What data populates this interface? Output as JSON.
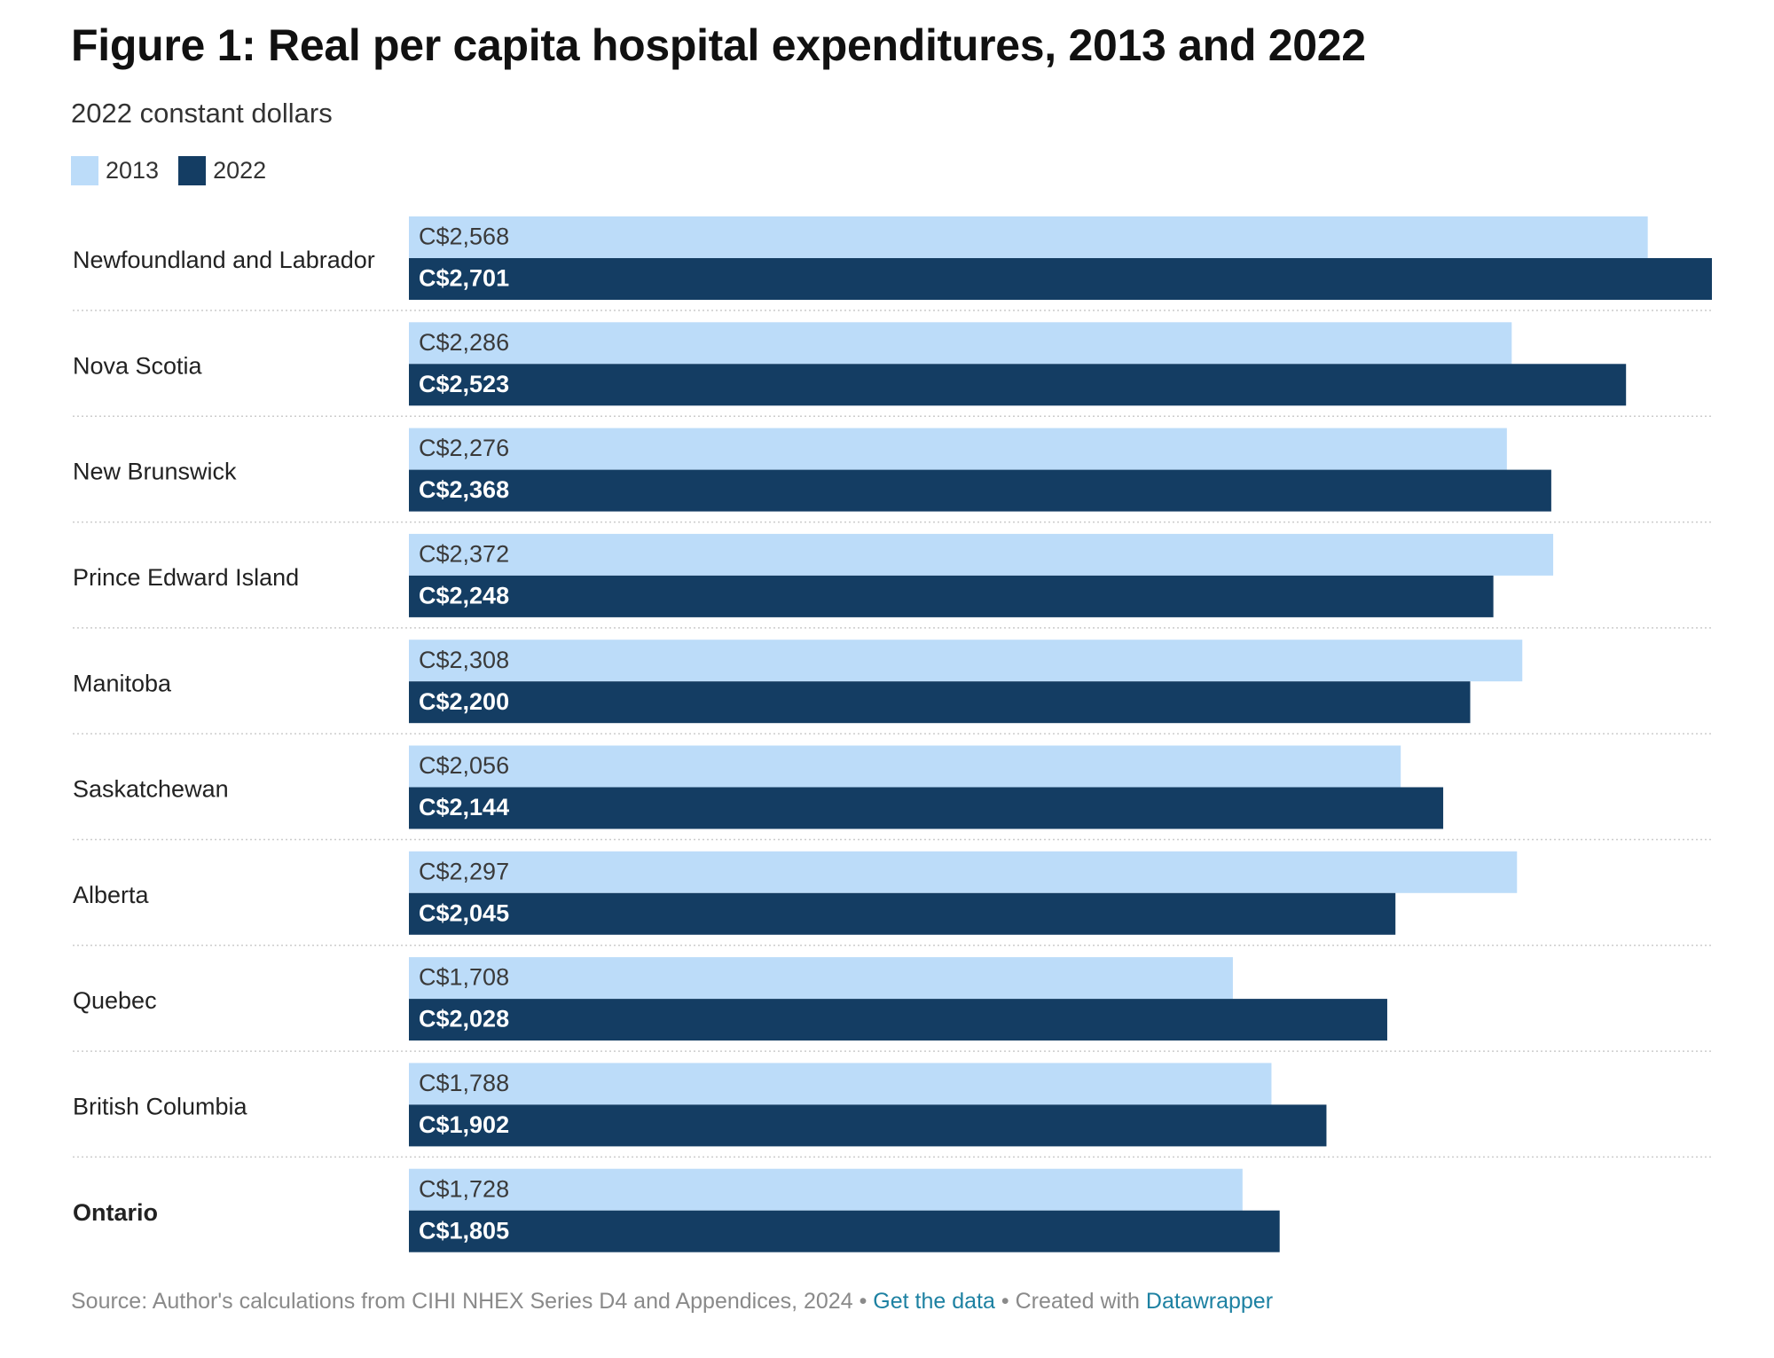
{
  "title": "Figure 1: Real per capita hospital expenditures, 2013 and 2022",
  "subtitle": "2022 constant dollars",
  "colors": {
    "2013": "#bcdcf9",
    "2022": "#143d63",
    "label_on_light": "#3a3a3a",
    "label_on_dark": "#ffffff",
    "separator": "#cccccc",
    "link": "#1d81a2"
  },
  "legend": [
    {
      "label": "2013",
      "color": "#bcdcf9"
    },
    {
      "label": "2022",
      "color": "#143d63"
    }
  ],
  "chart_data": {
    "type": "bar",
    "orientation": "horizontal",
    "grouped": true,
    "title": "Figure 1: Real per capita hospital expenditures, 2013 and 2022",
    "subtitle": "2022 constant dollars",
    "xlim": [
      0,
      2701
    ],
    "grid": false,
    "legend_position": "top-left",
    "categories": [
      "Newfoundland and Labrador",
      "Nova Scotia",
      "New Brunswick",
      "Prince Edward Island",
      "Manitoba",
      "Saskatchewan",
      "Alberta",
      "Quebec",
      "British Columbia",
      "Ontario"
    ],
    "bold_categories": [
      "Ontario"
    ],
    "series": [
      {
        "name": "2013",
        "color": "#bcdcf9",
        "values": [
          2568,
          2286,
          2276,
          2372,
          2308,
          2056,
          2297,
          1708,
          1788,
          1728
        ],
        "labels": [
          "C$2,568",
          "C$2,286",
          "C$2,276",
          "C$2,372",
          "C$2,308",
          "C$2,056",
          "C$2,297",
          "C$1,708",
          "C$1,788",
          "C$1,728"
        ]
      },
      {
        "name": "2022",
        "color": "#143d63",
        "values": [
          2701,
          2523,
          2368,
          2248,
          2200,
          2144,
          2045,
          2028,
          1902,
          1805
        ],
        "labels": [
          "C$2,701",
          "C$2,523",
          "C$2,368",
          "C$2,248",
          "C$2,200",
          "C$2,144",
          "C$2,045",
          "C$2,028",
          "C$1,902",
          "C$1,805"
        ]
      }
    ]
  },
  "footer": {
    "source_text": "Source: Author's calculations from CIHI NHEX Series D4 and Appendices, 2024",
    "separator": "•",
    "get_data_label": "Get the data",
    "created_with_text": "Created with",
    "tool_label": "Datawrapper"
  }
}
